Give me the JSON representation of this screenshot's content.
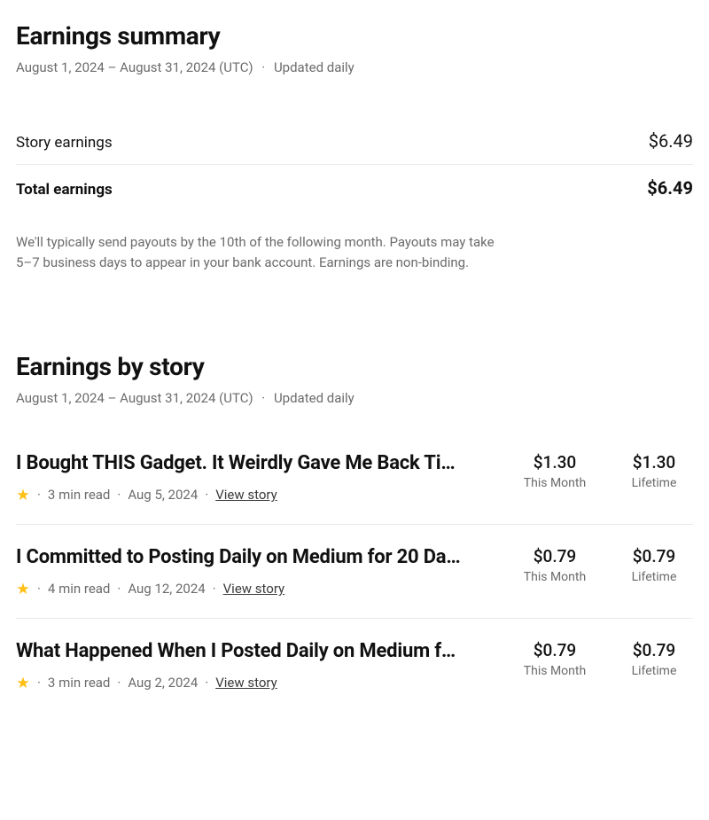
{
  "summary": {
    "title": "Earnings summary",
    "date_range": "August 1, 2024 – August 31, 2024 (UTC)",
    "updated": "Updated daily",
    "story_earnings_label": "Story earnings",
    "story_earnings_value": "$6.49",
    "total_earnings_label": "Total earnings",
    "total_earnings_value": "$6.49",
    "payout_note": "We'll typically send payouts by the 10th of the following month. Payouts may take 5–7 business days to appear in your bank account. Earnings are non-binding."
  },
  "by_story": {
    "title": "Earnings by story",
    "date_range": "August 1, 2024 – August 31, 2024 (UTC)",
    "updated": "Updated daily",
    "this_month_label": "This Month",
    "lifetime_label": "Lifetime",
    "view_story_label": "View story",
    "star_color": "#ffc017"
  },
  "stories": [
    {
      "title": "I Bought THIS Gadget. It Weirdly Gave Me Back Ti…",
      "read_time": "3 min read",
      "date": "Aug 5, 2024",
      "this_month": "$1.30",
      "lifetime": "$1.30"
    },
    {
      "title": "I Committed to Posting Daily on Medium for 20 Da…",
      "read_time": "4 min read",
      "date": "Aug 12, 2024",
      "this_month": "$0.79",
      "lifetime": "$0.79"
    },
    {
      "title": "What Happened When I Posted Daily on Medium f…",
      "read_time": "3 min read",
      "date": "Aug 2, 2024",
      "this_month": "$0.79",
      "lifetime": "$0.79"
    }
  ]
}
